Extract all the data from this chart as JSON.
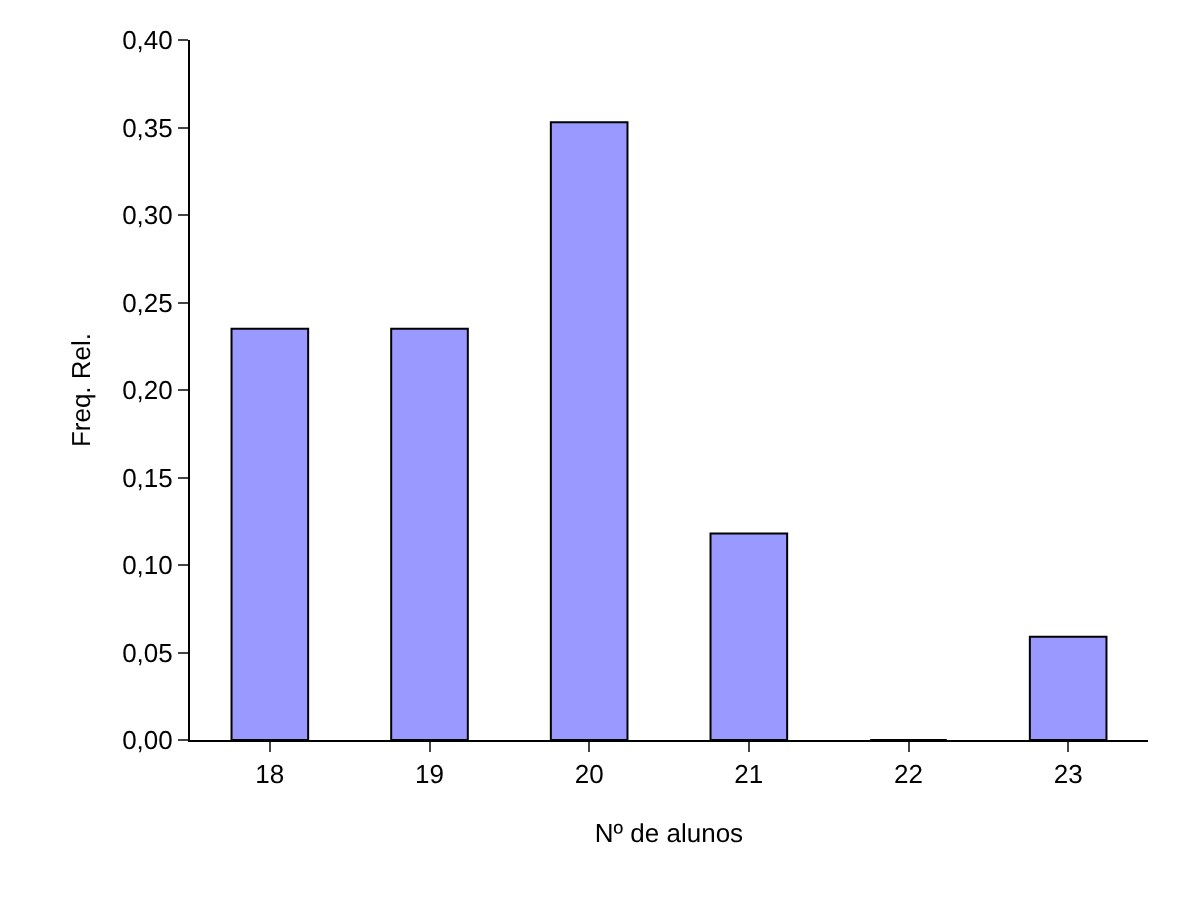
{
  "chart_data": {
    "type": "bar",
    "xlabel": "Nº de alunos",
    "ylabel": "Freq. Rel.",
    "categories": [
      "18",
      "19",
      "20",
      "21",
      "22",
      "23"
    ],
    "values": [
      0.235,
      0.235,
      0.353,
      0.118,
      0,
      0.059
    ],
    "color": "#9999ff",
    "ylim": [
      0,
      0.4
    ],
    "yticks": [
      {
        "value": 0,
        "label": "0,00"
      },
      {
        "value": 0.05,
        "label": "0,05"
      },
      {
        "value": 0.1,
        "label": "0,10"
      },
      {
        "value": 0.15,
        "label": "0,15"
      },
      {
        "value": 0.2,
        "label": "0,20"
      },
      {
        "value": 0.25,
        "label": "0,25"
      },
      {
        "value": 0.3,
        "label": "0,30"
      },
      {
        "value": 0.35,
        "label": "0,35"
      },
      {
        "value": 0.4,
        "label": "0,40"
      }
    ]
  }
}
